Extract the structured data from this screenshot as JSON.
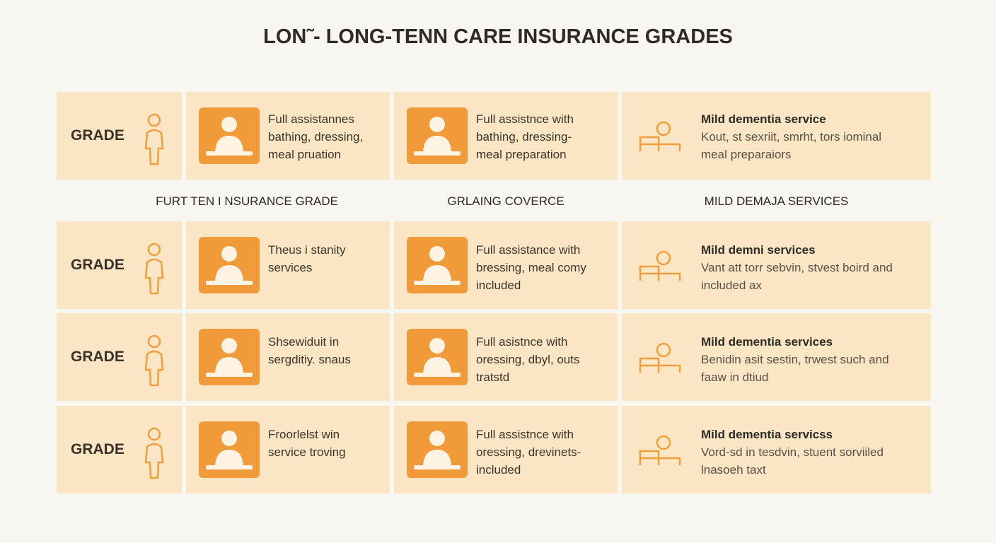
{
  "title": "LON˜- LONG-TENN CARE INSURANCE GRADES",
  "column_headers": [
    "FURT TEN I NSURANCE GRADE",
    "GRLAING COVERCE",
    "MILD DEMAJA SERVICES"
  ],
  "rows": [
    {
      "grade": "GRADE",
      "cells": [
        {
          "lines": [
            "Full assistannes",
            "bathing, dressing,",
            "meal pruation"
          ]
        },
        {
          "lines": [
            "Full assistnce with",
            "bathing, dressing-",
            "meal preparation"
          ]
        },
        {
          "title": "Mild dementia service",
          "lines": [
            "Kout, st sexriit, smrht, tors iominal",
            "meal preparaiors"
          ]
        }
      ]
    },
    {
      "grade": "GRADE",
      "cells": [
        {
          "lines": [
            "Theus i stanity",
            "services"
          ]
        },
        {
          "lines": [
            "Full assistance with",
            "bressing, meal comy",
            "included"
          ]
        },
        {
          "title": "Mild demni services",
          "lines": [
            "Vant att torr sebvin, stvest boird and",
            "included ax"
          ]
        }
      ]
    },
    {
      "grade": "GRADE",
      "cells": [
        {
          "lines": [
            "Shsewiduit in",
            "sergditiy. snaus"
          ]
        },
        {
          "lines": [
            "Full asistnce with",
            "oressing, dbyl, outs",
            "tratstd"
          ]
        },
        {
          "title": "Mild dementia services",
          "lines": [
            "Benidin asit sestin, trwest such and",
            "faaw in dtiud"
          ]
        }
      ]
    },
    {
      "grade": "GRADE",
      "cells": [
        {
          "lines": [
            "Froorlelst win",
            "service troving"
          ]
        },
        {
          "lines": [
            "Full assistnce with",
            "oressing, drevinets-",
            "included"
          ]
        },
        {
          "title": "Mild dementia servicss",
          "lines": [
            "Vord-sd in tesdvin, stuent sorviiled",
            "lnasoeh taxt"
          ]
        }
      ]
    }
  ]
}
